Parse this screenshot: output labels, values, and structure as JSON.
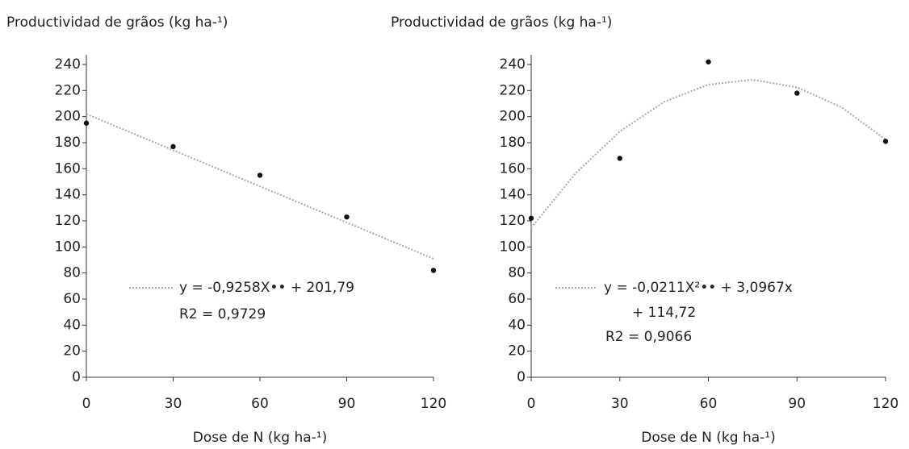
{
  "chart_data": [
    {
      "type": "scatter",
      "title": "Productividad de grãos (kg ha-¹)",
      "x_label": "Dose de N (kg ha-¹)",
      "x": [
        0,
        30,
        60,
        90,
        120
      ],
      "values": [
        195,
        177,
        155,
        123,
        82
      ],
      "color": "#111111",
      "trendline": {
        "x": [
          0,
          120
        ],
        "values": [
          202,
          91
        ],
        "color": "#aaaaaa"
      },
      "annotations": [
        "y = -0,9258X•• + 201,79",
        "R2 = 0,9729"
      ],
      "xlim": [
        0,
        120
      ],
      "xticks": [
        0,
        30,
        60,
        90,
        120
      ],
      "ylim": [
        0,
        240
      ],
      "yticks": [
        0,
        20,
        40,
        60,
        80,
        100,
        120,
        140,
        160,
        180,
        200,
        220,
        240
      ]
    },
    {
      "type": "scatter",
      "title": "Productividad de grãos (kg ha-¹)",
      "x_label": "Dose de N (kg ha-¹)",
      "x": [
        0,
        30,
        60,
        90,
        120
      ],
      "values": [
        122,
        168,
        242,
        218,
        181
      ],
      "color": "#111111",
      "trendline": {
        "x": [
          0,
          15,
          30,
          45,
          60,
          75,
          90,
          105,
          120
        ],
        "values": [
          114.7,
          156.4,
          188.6,
          211.3,
          224.6,
          228.3,
          222.5,
          207.3,
          182.5
        ],
        "color": "#aaaaaa"
      },
      "annotations": [
        "y = -0,0211X²•• + 3,0967x",
        "+ 114,72",
        "R2 = 0,9066"
      ],
      "xlim": [
        0,
        120
      ],
      "xticks": [
        0,
        30,
        60,
        90,
        120
      ],
      "ylim": [
        0,
        240
      ],
      "yticks": [
        0,
        20,
        40,
        60,
        80,
        100,
        120,
        140,
        160,
        180,
        200,
        220,
        240
      ]
    }
  ]
}
